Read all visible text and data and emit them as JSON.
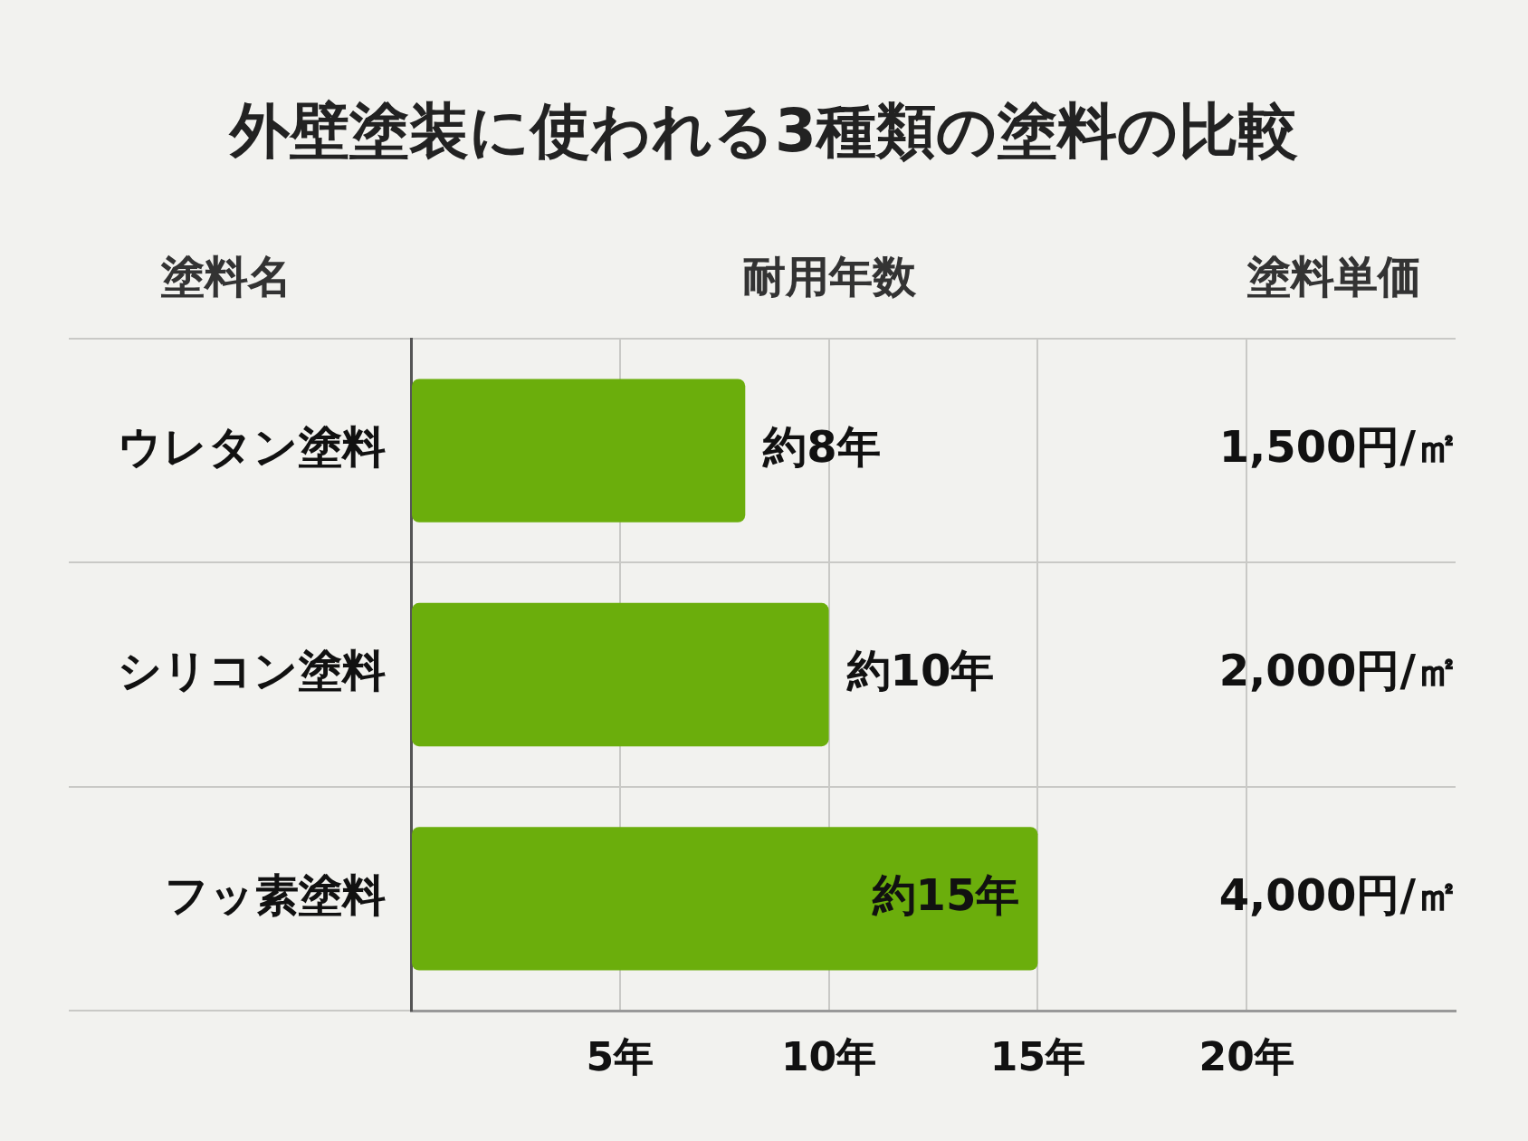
{
  "chart_data": {
    "type": "bar",
    "orientation": "horizontal",
    "title": "外壁塗装に使われる3種類の塗料の比較",
    "ylabel": "塗料名",
    "xlabel": "耐用年数",
    "categories": [
      "ウレタン塗料",
      "シリコン塗料",
      "フッ素塗料"
    ],
    "values": [
      8,
      10,
      15
    ],
    "color": "#6bae0c",
    "value_labels": [
      "約8年",
      "約10年",
      "約15年"
    ],
    "xlim": [
      0,
      25
    ],
    "xticks": [
      {
        "value": 0,
        "label": null
      },
      {
        "value": 5,
        "label": "5年"
      },
      {
        "value": 10,
        "label": "10年"
      },
      {
        "value": 15,
        "label": "15年"
      },
      {
        "value": 20,
        "label": "20年"
      }
    ],
    "grid": true,
    "annotations": [
      "塗料単価",
      "1,500円/㎡",
      "2,000円/㎡",
      "4,000円/㎡"
    ]
  }
}
